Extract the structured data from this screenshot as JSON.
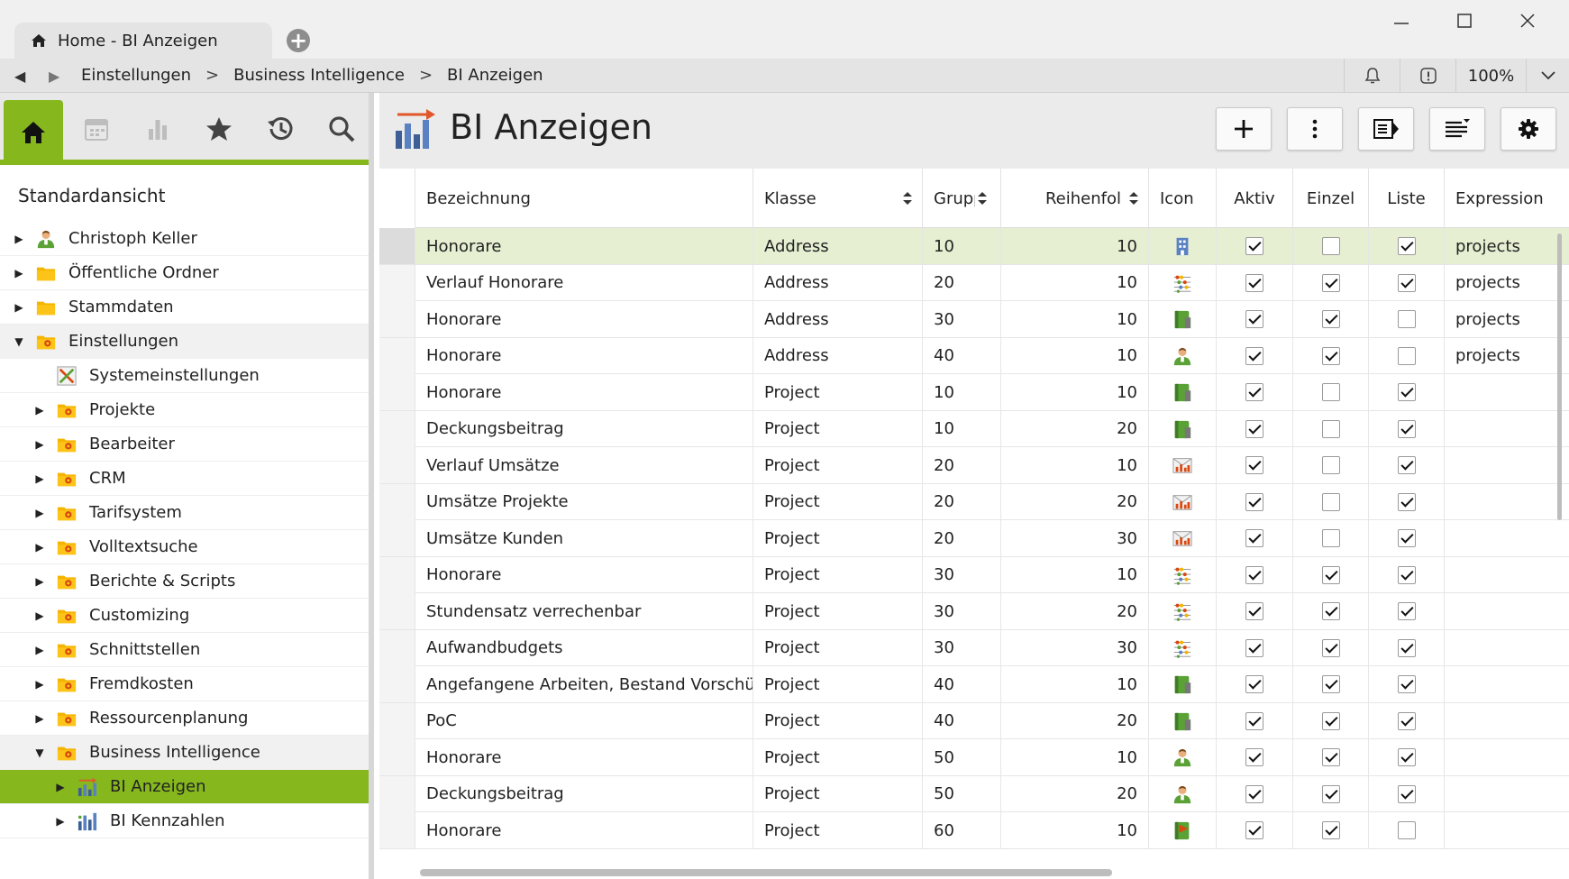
{
  "window": {
    "tab_title": "Home - BI Anzeigen",
    "new_tab_symbol": "+",
    "controls": [
      "minimize-icon",
      "maximize-icon",
      "close-icon"
    ]
  },
  "navbar": {
    "back_icon": "back-arrow-icon",
    "forward_icon": "forward-arrow-icon",
    "breadcrumbs": [
      "Einstellungen",
      "Business Intelligence",
      "BI Anzeigen"
    ],
    "separator": ">",
    "zoom": "100%"
  },
  "sidebar": {
    "tabs": [
      "home-icon",
      "calendar-icon",
      "chart-icon",
      "star-icon",
      "history-icon",
      "search-icon"
    ],
    "active_tab": "home-icon",
    "view_label": "Standardansicht",
    "tree": [
      {
        "label": "Christoph Keller",
        "level": 0,
        "state": "collapsed",
        "icon": "user-icon"
      },
      {
        "label": "Öffentliche Ordner",
        "level": 0,
        "state": "collapsed",
        "icon": "folder-icon"
      },
      {
        "label": "Stammdaten",
        "level": 0,
        "state": "collapsed",
        "icon": "folder-icon"
      },
      {
        "label": "Einstellungen",
        "level": 0,
        "state": "expanded",
        "icon": "settings-folder-icon"
      },
      {
        "label": "Systemeinstellungen",
        "level": 1,
        "state": "leaf",
        "icon": "tools-icon"
      },
      {
        "label": "Projekte",
        "level": 1,
        "state": "collapsed",
        "icon": "settings-folder-icon"
      },
      {
        "label": "Bearbeiter",
        "level": 1,
        "state": "collapsed",
        "icon": "settings-folder-icon"
      },
      {
        "label": "CRM",
        "level": 1,
        "state": "collapsed",
        "icon": "settings-folder-icon"
      },
      {
        "label": "Tarifsystem",
        "level": 1,
        "state": "collapsed",
        "icon": "settings-folder-icon"
      },
      {
        "label": "Volltextsuche",
        "level": 1,
        "state": "collapsed",
        "icon": "settings-folder-icon"
      },
      {
        "label": "Berichte & Scripts",
        "level": 1,
        "state": "collapsed",
        "icon": "settings-folder-icon"
      },
      {
        "label": "Customizing",
        "level": 1,
        "state": "collapsed",
        "icon": "settings-folder-icon"
      },
      {
        "label": "Schnittstellen",
        "level": 1,
        "state": "collapsed",
        "icon": "settings-folder-icon"
      },
      {
        "label": "Fremdkosten",
        "level": 1,
        "state": "collapsed",
        "icon": "settings-folder-icon"
      },
      {
        "label": "Ressourcenplanung",
        "level": 1,
        "state": "collapsed",
        "icon": "settings-folder-icon"
      },
      {
        "label": "Business Intelligence",
        "level": 1,
        "state": "expanded",
        "icon": "settings-folder-icon"
      },
      {
        "label": "BI Anzeigen",
        "level": 2,
        "state": "selected",
        "icon": "bi-display-icon"
      },
      {
        "label": "BI Kennzahlen",
        "level": 2,
        "state": "collapsed",
        "icon": "bi-kpi-icon"
      }
    ]
  },
  "main": {
    "title": "BI Anzeigen",
    "toolbar": [
      "add-icon",
      "more-icon",
      "panel-icon",
      "sort-list-icon",
      "gear-icon"
    ],
    "columns": [
      "Bezeichnung",
      "Klasse",
      "Grupp",
      "Reihenfol",
      "Icon",
      "Aktiv",
      "Einzel",
      "Liste",
      "Expression"
    ],
    "rows": [
      {
        "bez": "Honorare",
        "klasse": "Address",
        "gruppe": "10",
        "reihen": "10",
        "icon": "building-icon",
        "aktiv": true,
        "einzel": false,
        "liste": true,
        "expr": "projects",
        "selected": true
      },
      {
        "bez": "Verlauf Honorare",
        "klasse": "Address",
        "gruppe": "20",
        "reihen": "10",
        "icon": "abacus-icon",
        "aktiv": true,
        "einzel": true,
        "liste": true,
        "expr": "projects"
      },
      {
        "bez": "Honorare",
        "klasse": "Address",
        "gruppe": "30",
        "reihen": "10",
        "icon": "book-icon",
        "aktiv": true,
        "einzel": true,
        "liste": false,
        "expr": "projects"
      },
      {
        "bez": "Honorare",
        "klasse": "Address",
        "gruppe": "40",
        "reihen": "10",
        "icon": "user-icon",
        "aktiv": true,
        "einzel": true,
        "liste": false,
        "expr": "projects"
      },
      {
        "bez": "Honorare",
        "klasse": "Project",
        "gruppe": "10",
        "reihen": "10",
        "icon": "book-icon",
        "aktiv": true,
        "einzel": false,
        "liste": true,
        "expr": ""
      },
      {
        "bez": "Deckungsbeitrag",
        "klasse": "Project",
        "gruppe": "10",
        "reihen": "20",
        "icon": "book-icon",
        "aktiv": true,
        "einzel": false,
        "liste": true,
        "expr": ""
      },
      {
        "bez": "Verlauf Umsätze",
        "klasse": "Project",
        "gruppe": "20",
        "reihen": "10",
        "icon": "envelope-chart-icon",
        "aktiv": true,
        "einzel": false,
        "liste": true,
        "expr": ""
      },
      {
        "bez": "Umsätze Projekte",
        "klasse": "Project",
        "gruppe": "20",
        "reihen": "20",
        "icon": "envelope-chart-icon",
        "aktiv": true,
        "einzel": false,
        "liste": true,
        "expr": ""
      },
      {
        "bez": "Umsätze Kunden",
        "klasse": "Project",
        "gruppe": "20",
        "reihen": "30",
        "icon": "envelope-chart-icon",
        "aktiv": true,
        "einzel": false,
        "liste": true,
        "expr": ""
      },
      {
        "bez": "Honorare",
        "klasse": "Project",
        "gruppe": "30",
        "reihen": "10",
        "icon": "abacus-icon",
        "aktiv": true,
        "einzel": true,
        "liste": true,
        "expr": ""
      },
      {
        "bez": "Stundensatz verrechenbar",
        "klasse": "Project",
        "gruppe": "30",
        "reihen": "20",
        "icon": "abacus-icon",
        "aktiv": true,
        "einzel": true,
        "liste": true,
        "expr": ""
      },
      {
        "bez": "Aufwandbudgets",
        "klasse": "Project",
        "gruppe": "30",
        "reihen": "30",
        "icon": "abacus-icon",
        "aktiv": true,
        "einzel": true,
        "liste": true,
        "expr": ""
      },
      {
        "bez": "Angefangene Arbeiten, Bestand Vorschüsse",
        "klasse": "Project",
        "gruppe": "40",
        "reihen": "10",
        "icon": "book-icon",
        "aktiv": true,
        "einzel": true,
        "liste": true,
        "expr": ""
      },
      {
        "bez": "PoC",
        "klasse": "Project",
        "gruppe": "40",
        "reihen": "20",
        "icon": "book-icon",
        "aktiv": true,
        "einzel": true,
        "liste": true,
        "expr": ""
      },
      {
        "bez": "Honorare",
        "klasse": "Project",
        "gruppe": "50",
        "reihen": "10",
        "icon": "user-icon",
        "aktiv": true,
        "einzel": true,
        "liste": true,
        "expr": ""
      },
      {
        "bez": "Deckungsbeitrag",
        "klasse": "Project",
        "gruppe": "50",
        "reihen": "20",
        "icon": "user-icon",
        "aktiv": true,
        "einzel": true,
        "liste": true,
        "expr": ""
      },
      {
        "bez": "Honorare",
        "klasse": "Project",
        "gruppe": "60",
        "reihen": "10",
        "icon": "flag-book-icon",
        "aktiv": true,
        "einzel": true,
        "liste": false,
        "expr": ""
      }
    ]
  },
  "colors": {
    "accent": "#86b81e",
    "selected_row": "#e6efd2"
  }
}
